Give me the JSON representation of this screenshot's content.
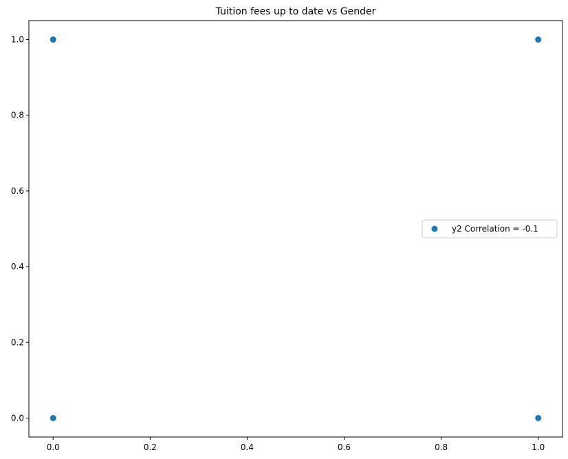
{
  "chart_data": {
    "type": "scatter",
    "title": "Tuition fees up to date vs Gender",
    "xlabel": "",
    "ylabel": "",
    "xlim": [
      -0.05,
      1.05
    ],
    "ylim": [
      -0.05,
      1.05
    ],
    "xticks": [
      0.0,
      0.2,
      0.4,
      0.6,
      0.8,
      1.0
    ],
    "xtick_labels": [
      "0.0",
      "0.2",
      "0.4",
      "0.6",
      "0.8",
      "1.0"
    ],
    "yticks": [
      0.0,
      0.2,
      0.4,
      0.6,
      0.8,
      1.0
    ],
    "ytick_labels": [
      "0.0",
      "0.2",
      "0.4",
      "0.6",
      "0.8",
      "1.0"
    ],
    "grid": false,
    "legend_position": "center-right",
    "series": [
      {
        "name": "y2 Correlation = -0.1",
        "color": "#1f77b4",
        "points": [
          {
            "x": 0,
            "y": 0
          },
          {
            "x": 0,
            "y": 1
          },
          {
            "x": 1,
            "y": 0
          },
          {
            "x": 1,
            "y": 1
          }
        ]
      }
    ]
  }
}
